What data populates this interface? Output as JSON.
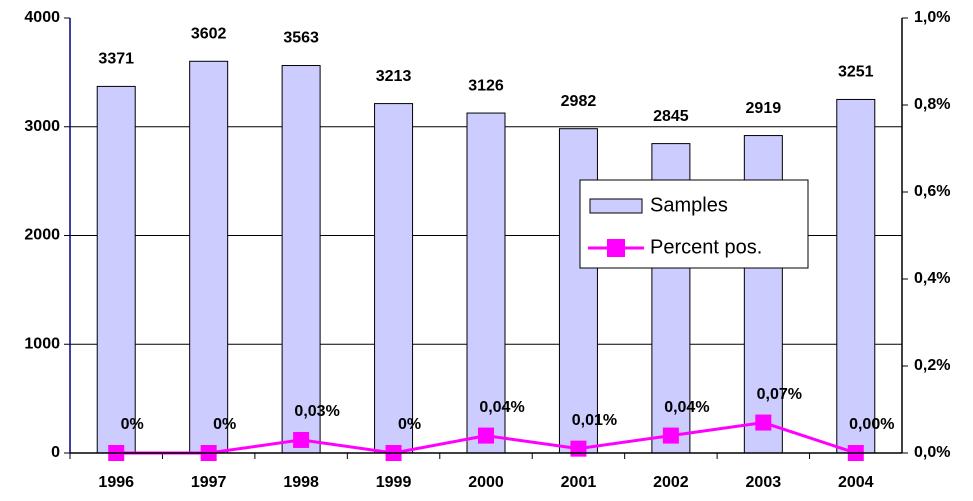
{
  "chart_data": {
    "type": "bar_line",
    "categories": [
      "1996",
      "1997",
      "1998",
      "1999",
      "2000",
      "2001",
      "2002",
      "2003",
      "2004"
    ],
    "series": [
      {
        "name": "Samples",
        "type": "bar",
        "color": "#ccccff",
        "values": [
          3371,
          3602,
          3563,
          3213,
          3126,
          2982,
          2845,
          2919,
          3251
        ]
      },
      {
        "name": "Percent pos.",
        "type": "line",
        "axis": "y2",
        "color": "#ff00ff",
        "values": [
          0,
          0,
          0.03,
          0,
          0.04,
          0.01,
          0.04,
          0.07,
          0.0
        ],
        "value_labels": [
          "0%",
          "0%",
          "0,03%",
          "0%",
          "0,04%",
          "0,01%",
          "0,04%",
          "0,07%",
          "0,00%"
        ]
      }
    ],
    "ylim": [
      0,
      4000
    ],
    "yticks": [
      0,
      1000,
      2000,
      3000,
      4000
    ],
    "y2lim": [
      0,
      1.0
    ],
    "y2ticks": [
      {
        "value": 0,
        "label": "0,0%"
      },
      {
        "value": 0.2,
        "label": "0,2%"
      },
      {
        "value": 0.4,
        "label": "0,4%"
      },
      {
        "value": 0.6,
        "label": "0,6%"
      },
      {
        "value": 0.8,
        "label": "0,8%"
      },
      {
        "value": 1.0,
        "label": "1,0%"
      }
    ],
    "grid": true
  }
}
